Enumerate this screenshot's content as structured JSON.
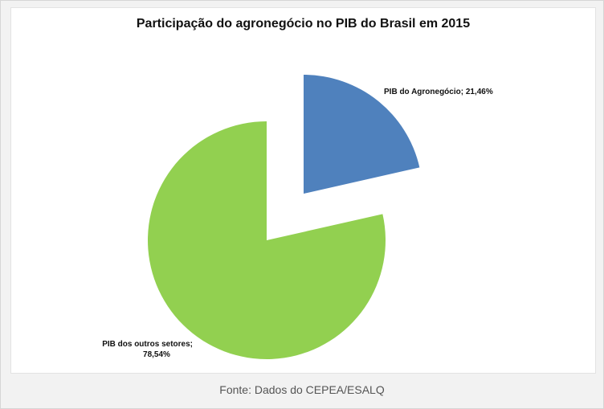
{
  "chart_data": {
    "type": "pie",
    "title": "Participação do agronegócio no PIB do Brasil em 2015",
    "slices": [
      {
        "label": "PIB do Agronegócio",
        "value": 21.46,
        "display": "21,46%",
        "color": "#4f81bd"
      },
      {
        "label": "PIB dos outros setores",
        "value": 78.54,
        "display": "78,54%",
        "color": "#92d050"
      }
    ],
    "legend": "none"
  },
  "labels": {
    "agro": "PIB do Agronegócio; 21,46%",
    "outros_line1": "PIB dos outros setores;",
    "outros_line2": "78,54%"
  },
  "caption": "Fonte: Dados do CEPEA/ESALQ"
}
